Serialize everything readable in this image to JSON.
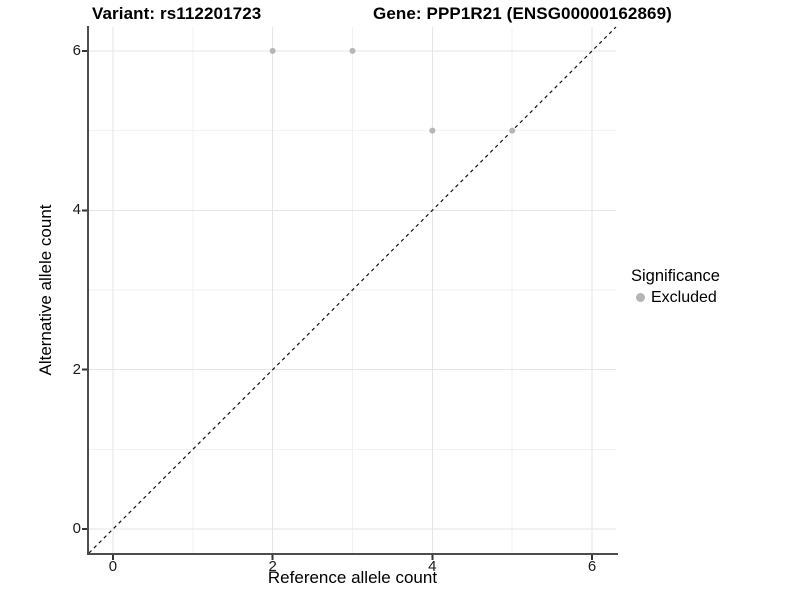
{
  "chart_data": {
    "type": "scatter",
    "title_left": "Variant: rs112201723",
    "title_right": "Gene: PPP1R21 (ENSG00000162869)",
    "xlabel": "Reference allele count",
    "ylabel": "Alternative allele count",
    "xlim": [
      -0.3,
      6.3
    ],
    "ylim": [
      -0.3,
      6.3
    ],
    "x_major_ticks": [
      0,
      2,
      4,
      6
    ],
    "y_major_ticks": [
      0,
      2,
      4,
      6
    ],
    "x_minor_gridlines": [
      1,
      3,
      5
    ],
    "y_minor_gridlines": [
      1,
      3,
      5
    ],
    "grid": "on",
    "legend_position": "right",
    "identity_line": {
      "style": "dashed",
      "color": "#111111",
      "from": [
        -0.3,
        -0.3
      ],
      "to": [
        6.3,
        6.3
      ]
    },
    "series": [
      {
        "name": "Excluded",
        "color": "#b5b5b5",
        "points": [
          [
            2,
            6
          ],
          [
            3,
            6
          ],
          [
            4,
            5
          ],
          [
            5,
            5
          ]
        ]
      }
    ],
    "legend": {
      "title": "Significance",
      "items": [
        {
          "label": "Excluded",
          "color": "#b5b5b5",
          "icon": "point-icon"
        }
      ]
    }
  },
  "colors": {
    "background": "#ffffff",
    "major_grid": "#e5e5e5",
    "minor_grid": "#f2f2f2",
    "axis_line": "#4d4d4d",
    "tick_mark": "#333333",
    "point": "#b5b5b5"
  }
}
